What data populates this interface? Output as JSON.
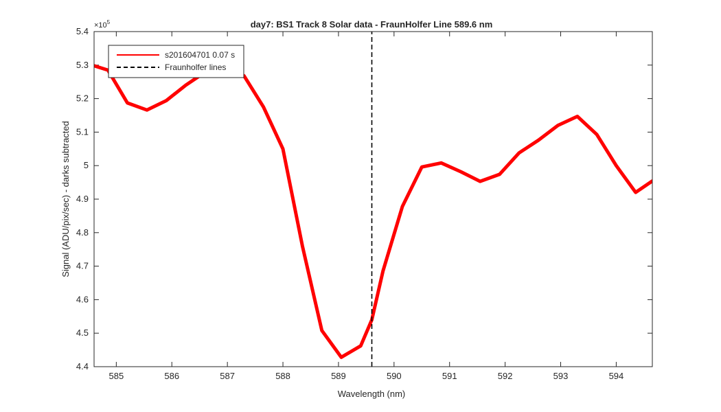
{
  "chart_data": {
    "type": "line",
    "title": "day7: BS1  Track 8 Solar data - FraunHolfer Line 589.6 nm",
    "xlabel": "Wavelength (nm)",
    "ylabel": "Signal (ADU/pix/sec) - darks subtracted",
    "xlim": [
      584.6,
      594.65
    ],
    "ylim": [
      440000,
      540000
    ],
    "y_exponent_label": "×10",
    "y_exponent_power": "5",
    "xticks": [
      585,
      586,
      587,
      588,
      589,
      590,
      591,
      592,
      593,
      594
    ],
    "xtick_labels": [
      "585",
      "586",
      "587",
      "588",
      "589",
      "590",
      "591",
      "592",
      "593",
      "594"
    ],
    "yticks": [
      440000,
      450000,
      460000,
      470000,
      480000,
      490000,
      500000,
      510000,
      520000,
      530000,
      540000
    ],
    "ytick_labels": [
      "4.4",
      "4.5",
      "4.6",
      "4.7",
      "4.8",
      "4.9",
      "5",
      "5.1",
      "5.2",
      "5.3",
      "5.4"
    ],
    "grid": false,
    "legend_position": "top-left",
    "series": [
      {
        "name": "s201604701 0.07 s",
        "color": "#ff0000",
        "style": "solid",
        "x": [
          584.6,
          584.85,
          585.2,
          585.55,
          585.9,
          586.25,
          586.6,
          586.95,
          587.3,
          587.65,
          588.0,
          588.35,
          588.7,
          589.05,
          589.4,
          589.6,
          589.8,
          590.15,
          590.5,
          590.85,
          591.2,
          591.55,
          591.9,
          592.25,
          592.6,
          592.95,
          593.3,
          593.65,
          594.0,
          594.35,
          594.65
        ],
        "y": [
          529800,
          528500,
          518700,
          516600,
          519400,
          524000,
          527900,
          530000,
          526800,
          517500,
          505000,
          476000,
          450800,
          442800,
          446200,
          454000,
          468500,
          487800,
          499600,
          500800,
          498200,
          495300,
          497400,
          503800,
          507600,
          512000,
          514700,
          509300,
          500000,
          492000,
          495400
        ]
      },
      {
        "name": "Fraunholfer lines",
        "color": "#000000",
        "style": "dashed",
        "x": [
          589.6,
          589.6
        ],
        "y": [
          440000,
          540000
        ]
      }
    ]
  }
}
